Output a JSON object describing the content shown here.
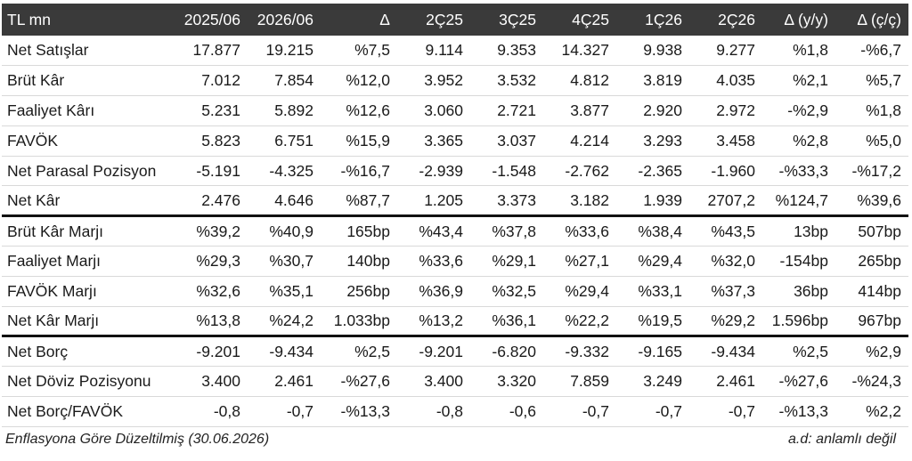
{
  "table": {
    "headers": [
      "TL mn",
      "2025/06",
      "2026/06",
      "Δ",
      "2Ç25",
      "3Ç25",
      "4Ç25",
      "1Ç26",
      "2Ç26",
      "Δ (y/y)",
      "Δ (ç/ç)"
    ],
    "rows": [
      [
        "Net Satışlar",
        "17.877",
        "19.215",
        "%7,5",
        "9.114",
        "9.353",
        "14.327",
        "9.938",
        "9.277",
        "%1,8",
        "-%6,7"
      ],
      [
        "Brüt Kâr",
        "7.012",
        "7.854",
        "%12,0",
        "3.952",
        "3.532",
        "4.812",
        "3.819",
        "4.035",
        "%2,1",
        "%5,7"
      ],
      [
        "Faaliyet Kârı",
        "5.231",
        "5.892",
        "%12,6",
        "3.060",
        "2.721",
        "3.877",
        "2.920",
        "2.972",
        "-%2,9",
        "%1,8"
      ],
      [
        "FAVÖK",
        "5.823",
        "6.751",
        "%15,9",
        "3.365",
        "3.037",
        "4.214",
        "3.293",
        "3.458",
        "%2,8",
        "%5,0"
      ],
      [
        "Net Parasal Pozisyon",
        "-5.191",
        "-4.325",
        "-%16,7",
        "-2.939",
        "-1.548",
        "-2.762",
        "-2.365",
        "-1.960",
        "-%33,3",
        "-%17,2"
      ],
      [
        "Net Kâr",
        "2.476",
        "4.646",
        "%87,7",
        "1.205",
        "3.373",
        "3.182",
        "1.939",
        "2707,2",
        "%124,7",
        "%39,6"
      ],
      [
        "Brüt Kâr Marjı",
        "%39,2",
        "%40,9",
        "165bp",
        "%43,4",
        "%37,8",
        "%33,6",
        "%38,4",
        "%43,5",
        "13bp",
        "507bp"
      ],
      [
        "Faaliyet Marjı",
        "%29,3",
        "%30,7",
        "140bp",
        "%33,6",
        "%29,1",
        "%27,1",
        "%29,4",
        "%32,0",
        "-154bp",
        "265bp"
      ],
      [
        "FAVÖK Marjı",
        "%32,6",
        "%35,1",
        "256bp",
        "%36,9",
        "%32,5",
        "%29,4",
        "%33,1",
        "%37,3",
        "36bp",
        "414bp"
      ],
      [
        "Net Kâr Marjı",
        "%13,8",
        "%24,2",
        "1.033bp",
        "%13,2",
        "%36,1",
        "%22,2",
        "%19,5",
        "%29,2",
        "1.596bp",
        "967bp"
      ],
      [
        "Net Borç",
        "-9.201",
        "-9.434",
        "%2,5",
        "-9.201",
        "-6.820",
        "-9.332",
        "-9.165",
        "-9.434",
        "%2,5",
        "%2,9"
      ],
      [
        "Net Döviz Pozisyonu",
        "3.400",
        "2.461",
        "-%27,6",
        "3.400",
        "3.320",
        "7.859",
        "3.249",
        "2.461",
        "-%27,6",
        "-%24,3"
      ],
      [
        "Net Borç/FAVÖK",
        "-0,8",
        "-0,7",
        "-%13,3",
        "-0,8",
        "-0,6",
        "-0,7",
        "-0,7",
        "-0,7",
        "-%13,3",
        "%2,2"
      ]
    ]
  },
  "footer": {
    "note": "Enflasyona Göre Düzeltilmiş (30.06.2026)",
    "legend": "a.d: anlamlı değil"
  },
  "colors": {
    "header_bg": "#3a3a3a",
    "header_text": "#ffffff",
    "separator": "#111111"
  }
}
